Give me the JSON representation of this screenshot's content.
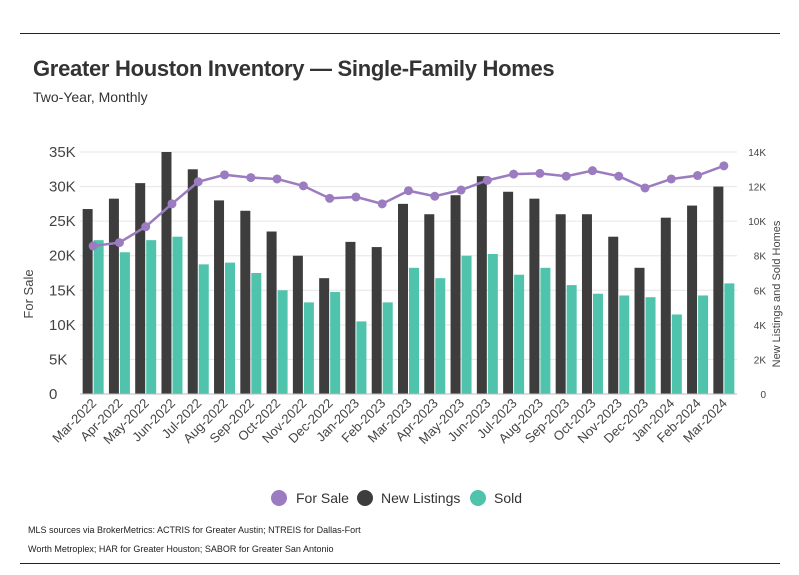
{
  "header": {
    "title": "Greater Houston Inventory — Single-Family Homes",
    "subtitle": "Two-Year, Monthly"
  },
  "footer": {
    "source_line1": "MLS sources via BrokerMetrics: ACTRIS for Greater Austin; NTREIS for Dallas-Fort",
    "source_line2": "Worth Metroplex; HAR for Greater Houston; SABOR for Greater San Antonio"
  },
  "colors": {
    "for_sale": "#9b7cc0",
    "new_listings": "#3d3d3d",
    "sold": "#4fc3ac",
    "grid": "#e6e6e6"
  },
  "chart_data": {
    "type": "bar",
    "categories": [
      "Mar-2022",
      "Apr-2022",
      "May-2022",
      "Jun-2022",
      "Jul-2022",
      "Aug-2022",
      "Sep-2022",
      "Oct-2022",
      "Nov-2022",
      "Dec-2022",
      "Jan-2023",
      "Feb-2023",
      "Mar-2023",
      "Apr-2023",
      "May-2023",
      "Jun-2023",
      "Jul-2023",
      "Aug-2023",
      "Sep-2023",
      "Oct-2023",
      "Nov-2023",
      "Dec-2023",
      "Jan-2024",
      "Feb-2024",
      "Mar-2024"
    ],
    "ylabel": "For Sale",
    "y2label": "New Listings and Sold Homes",
    "ylim": [
      0,
      35000
    ],
    "y2lim": [
      0,
      14000
    ],
    "yticks": [
      "0",
      "5K",
      "10K",
      "15K",
      "20K",
      "25K",
      "30K",
      "35K"
    ],
    "y2ticks": [
      "0",
      "2K",
      "4K",
      "6K",
      "8K",
      "10K",
      "12K",
      "14K"
    ],
    "grid": true,
    "legend_position": "bottom",
    "series": [
      {
        "name": "For Sale",
        "type": "line",
        "axis": "left",
        "values": [
          21400,
          21900,
          24200,
          27500,
          30700,
          31700,
          31300,
          31100,
          30100,
          28300,
          28500,
          27500,
          29400,
          28600,
          29500,
          30900,
          31800,
          31900,
          31500,
          32300,
          31500,
          29800,
          31100,
          31600,
          33000
        ]
      },
      {
        "name": "New Listings",
        "type": "bar",
        "axis": "right",
        "values": [
          10700,
          11300,
          12200,
          14000,
          13000,
          11200,
          10600,
          9400,
          8000,
          6700,
          8800,
          8500,
          11000,
          10400,
          11500,
          12600,
          11700,
          11300,
          10400,
          10400,
          9100,
          7300,
          10200,
          10900,
          12000
        ]
      },
      {
        "name": "Sold",
        "type": "bar",
        "axis": "right",
        "values": [
          8900,
          8200,
          8900,
          9100,
          7500,
          7600,
          7000,
          6000,
          5300,
          5900,
          4200,
          5300,
          7300,
          6700,
          8000,
          8100,
          6900,
          7300,
          6300,
          5800,
          5700,
          5600,
          4600,
          5700,
          6400
        ]
      }
    ]
  }
}
